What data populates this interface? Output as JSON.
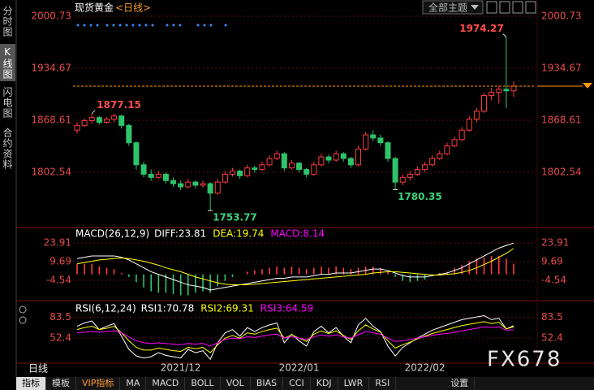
{
  "header": {
    "theme_button": "全部主题"
  },
  "sidebar": [
    "分时图",
    "K线图",
    "闪电图",
    "合约资料"
  ],
  "period_label": "日线",
  "watermark": "FX678",
  "tabs": [
    "指标",
    "模板",
    "VIP指标",
    "MA",
    "MACD",
    "BOLL",
    "VOL",
    "BIAS",
    "CCI",
    "KDJ",
    "LWR",
    "RSI",
    "设置"
  ],
  "chart_data": [
    {
      "type": "candlestick",
      "title": "现货黄金",
      "subtitle": "<日线>",
      "up_color": "#ff3c3c",
      "down_color": "#2fc46a",
      "last_line_color": "#ff9900",
      "ylim": [
        1734.4,
        2006.9
      ],
      "yticks": [
        2000.73,
        1934.67,
        1868.61,
        1802.54
      ],
      "grid": true,
      "categories": [
        null,
        null,
        null,
        null,
        null,
        null,
        null,
        null,
        null,
        null,
        null,
        null,
        null,
        null,
        "2021/12",
        null,
        null,
        null,
        null,
        null,
        null,
        null,
        null,
        null,
        null,
        null,
        null,
        null,
        null,
        null,
        "2022/01",
        null,
        null,
        null,
        null,
        null,
        null,
        null,
        null,
        null,
        null,
        null,
        null,
        null,
        null,
        null,
        null,
        "2022/02",
        null,
        null,
        null,
        null,
        null,
        null,
        null,
        null,
        null,
        null,
        null,
        null
      ],
      "candles": [
        [
          1856,
          1866,
          1852,
          1862
        ],
        [
          1862,
          1871,
          1860,
          1868
        ],
        [
          1868,
          1877.15,
          1864,
          1872
        ],
        [
          1872,
          1874,
          1863,
          1866
        ],
        [
          1866,
          1873,
          1864,
          1870
        ],
        [
          1870,
          1877,
          1866,
          1874
        ],
        [
          1874,
          1876,
          1858,
          1862
        ],
        [
          1862,
          1864,
          1836,
          1840
        ],
        [
          1840,
          1842,
          1806,
          1812
        ],
        [
          1812,
          1816,
          1796,
          1800
        ],
        [
          1800,
          1806,
          1792,
          1796
        ],
        [
          1796,
          1804,
          1794,
          1800
        ],
        [
          1800,
          1802,
          1788,
          1792
        ],
        [
          1792,
          1796,
          1784,
          1788
        ],
        [
          1788,
          1792,
          1780,
          1784
        ],
        [
          1784,
          1794,
          1782,
          1790
        ],
        [
          1790,
          1792,
          1782,
          1786
        ],
        [
          1786,
          1792,
          1783,
          1788
        ],
        [
          1788,
          1790,
          1753.77,
          1776
        ],
        [
          1776,
          1794,
          1774,
          1790
        ],
        [
          1790,
          1804,
          1788,
          1800
        ],
        [
          1800,
          1808,
          1797,
          1804
        ],
        [
          1804,
          1806,
          1794,
          1798
        ],
        [
          1798,
          1812,
          1796,
          1808
        ],
        [
          1808,
          1811,
          1802,
          1806
        ],
        [
          1806,
          1816,
          1804,
          1812
        ],
        [
          1812,
          1824,
          1810,
          1820
        ],
        [
          1820,
          1830,
          1818,
          1826
        ],
        [
          1826,
          1828,
          1804,
          1808
        ],
        [
          1808,
          1818,
          1806,
          1814
        ],
        [
          1814,
          1816,
          1802,
          1806
        ],
        [
          1806,
          1808,
          1796,
          1800
        ],
        [
          1800,
          1816,
          1798,
          1812
        ],
        [
          1812,
          1826,
          1810,
          1822
        ],
        [
          1822,
          1825,
          1814,
          1818
        ],
        [
          1818,
          1830,
          1816,
          1826
        ],
        [
          1826,
          1828,
          1816,
          1820
        ],
        [
          1820,
          1822,
          1808,
          1812
        ],
        [
          1812,
          1836,
          1810,
          1832
        ],
        [
          1832,
          1854,
          1830,
          1850
        ],
        [
          1850,
          1856,
          1842,
          1846
        ],
        [
          1846,
          1850,
          1836,
          1840
        ],
        [
          1840,
          1842,
          1816,
          1820
        ],
        [
          1820,
          1822,
          1780.35,
          1790
        ],
        [
          1790,
          1800,
          1786,
          1796
        ],
        [
          1796,
          1804,
          1792,
          1800
        ],
        [
          1800,
          1810,
          1798,
          1806
        ],
        [
          1806,
          1816,
          1803,
          1812
        ],
        [
          1812,
          1824,
          1810,
          1820
        ],
        [
          1820,
          1830,
          1818,
          1826
        ],
        [
          1826,
          1840,
          1824,
          1836
        ],
        [
          1836,
          1848,
          1834,
          1844
        ],
        [
          1844,
          1860,
          1842,
          1856
        ],
        [
          1856,
          1874,
          1854,
          1870
        ],
        [
          1870,
          1884,
          1866,
          1880
        ],
        [
          1880,
          1904,
          1878,
          1900
        ],
        [
          1900,
          1910,
          1894,
          1904
        ],
        [
          1904,
          1912,
          1890,
          1908
        ],
        [
          1908,
          1974.27,
          1884,
          1906
        ],
        [
          1906,
          1918,
          1898,
          1912
        ]
      ]
    },
    {
      "type": "macd",
      "title": "MACD(26,12,9)",
      "up_color": "#ff3c3c",
      "down_color": "#2fc46a",
      "ylim": [
        -18.8,
        32.6
      ],
      "yticks": [
        23.91,
        9.69,
        -4.54
      ],
      "grid": true,
      "series": [
        {
          "name": "DIFF:23.81",
          "color": "#ffffff",
          "values": [
            12,
            13,
            14,
            14,
            14,
            14,
            13,
            11,
            8,
            5,
            2,
            0,
            -2,
            -4,
            -6,
            -8,
            -9,
            -10,
            -12,
            -11,
            -10,
            -9,
            -8,
            -7,
            -6,
            -5,
            -4,
            -3,
            -3,
            -2,
            -2,
            -2,
            -1,
            0,
            0,
            1,
            1,
            1,
            2,
            3,
            4,
            4,
            3,
            1,
            -1,
            -2,
            -2,
            -2,
            -1,
            0,
            1,
            3,
            5,
            8,
            11,
            14,
            17,
            20,
            22,
            23.81
          ]
        },
        {
          "name": "DEA:19.74",
          "color": "#ffff00",
          "values": [
            8,
            9,
            10,
            11,
            11.5,
            12,
            12.5,
            12,
            11,
            10,
            8.5,
            7,
            5,
            3.5,
            2,
            0,
            -2,
            -3.5,
            -5,
            -6.5,
            -7.5,
            -8,
            -8,
            -8,
            -7.5,
            -7,
            -6.5,
            -6,
            -5.5,
            -5,
            -4.5,
            -4,
            -3.5,
            -3,
            -2.5,
            -2,
            -1.5,
            -1,
            -0.5,
            0,
            1,
            1.5,
            2,
            2,
            1.5,
            1,
            0.5,
            0,
            -0.5,
            -0.5,
            0,
            0.5,
            1.5,
            3,
            5,
            7.5,
            10,
            13,
            16,
            19.74
          ]
        },
        {
          "name": "MACD:8.14",
          "color": "#ff00ff",
          "type": "bar",
          "values": [
            8,
            8,
            8,
            6,
            5,
            4,
            1,
            -2,
            -6,
            -10,
            -13,
            -14,
            -14,
            -15,
            -16,
            -16,
            -14,
            -13,
            -14,
            -9,
            -5,
            -2,
            0,
            2,
            3,
            4,
            5,
            6,
            5,
            6,
            5,
            4,
            5,
            6,
            5,
            6,
            5,
            4,
            5,
            6,
            6,
            5,
            2,
            -2,
            -5,
            -6,
            -5,
            -4,
            -1,
            1,
            2,
            5,
            7,
            10,
            12,
            13,
            14,
            14,
            12,
            8.14
          ]
        }
      ]
    },
    {
      "type": "line",
      "title": "RSI(6,12,24)",
      "ylim": [
        12.9,
        102.6
      ],
      "yticks": [
        83.5,
        52.4
      ],
      "grid": true,
      "series": [
        {
          "name": "RSI1:70.78",
          "color": "#ffffff",
          "values": [
            70,
            75,
            78,
            65,
            70,
            74,
            55,
            35,
            25,
            22,
            24,
            30,
            26,
            24,
            22,
            35,
            30,
            33,
            20,
            45,
            60,
            65,
            55,
            68,
            62,
            68,
            72,
            75,
            45,
            58,
            48,
            40,
            62,
            70,
            60,
            68,
            55,
            45,
            72,
            82,
            70,
            62,
            40,
            25,
            38,
            45,
            52,
            58,
            64,
            68,
            72,
            76,
            80,
            82,
            84,
            86,
            80,
            82,
            66,
            70.78
          ]
        },
        {
          "name": "RSI2:69.31",
          "color": "#ffff00",
          "values": [
            65,
            68,
            70,
            65,
            67,
            70,
            60,
            48,
            38,
            34,
            34,
            37,
            35,
            33,
            32,
            38,
            36,
            38,
            30,
            42,
            52,
            56,
            52,
            60,
            58,
            62,
            65,
            67,
            52,
            57,
            52,
            47,
            58,
            63,
            59,
            63,
            56,
            50,
            63,
            72,
            66,
            61,
            48,
            37,
            42,
            46,
            51,
            55,
            59,
            62,
            65,
            68,
            71,
            73,
            75,
            77,
            74,
            76,
            66,
            69.31
          ]
        },
        {
          "name": "RSI3:64.59",
          "color": "#ff00ff",
          "values": [
            60,
            61,
            62,
            61,
            62,
            63,
            60,
            54,
            48,
            45,
            44,
            45,
            44,
            43,
            42,
            44,
            43,
            44,
            40,
            45,
            50,
            52,
            51,
            54,
            53,
            55,
            57,
            58,
            52,
            54,
            52,
            50,
            54,
            57,
            55,
            57,
            54,
            52,
            57,
            62,
            60,
            58,
            52,
            47,
            48,
            50,
            52,
            54,
            56,
            58,
            59,
            61,
            63,
            65,
            67,
            69,
            68,
            69,
            64,
            64.59
          ]
        }
      ]
    }
  ]
}
